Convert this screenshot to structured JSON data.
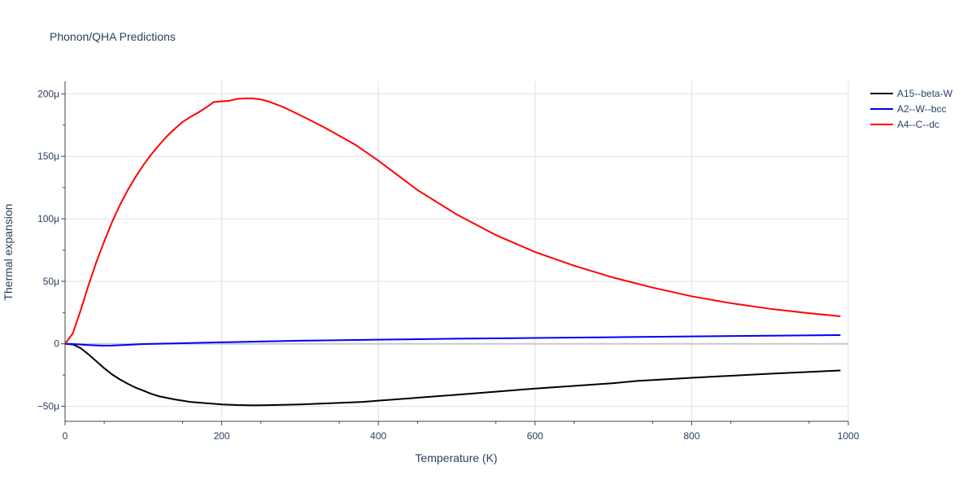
{
  "chart_data": {
    "type": "line",
    "title": "Phonon/QHA Predictions",
    "xlabel": "Temperature (K)",
    "ylabel": "Thermal expansion",
    "xlim": [
      0,
      1000
    ],
    "ylim": [
      -6.2e-05,
      0.00021
    ],
    "x_ticks": [
      0,
      200,
      400,
      600,
      800,
      1000
    ],
    "x_tick_labels": [
      "0",
      "200",
      "400",
      "600",
      "800",
      "1000"
    ],
    "y_ticks": [
      -5e-05,
      0,
      5e-05,
      0.0001,
      0.00015,
      0.0002
    ],
    "y_tick_labels": [
      "−50μ",
      "0",
      "50μ",
      "100μ",
      "150μ",
      "200μ"
    ],
    "grid": true,
    "legend_position": "top-right, outside plot",
    "series": [
      {
        "name": "A15--beta-W",
        "color": "#000000",
        "x": [
          0,
          10,
          20,
          30,
          40,
          50,
          60,
          70,
          80,
          90,
          100,
          110,
          120,
          140,
          150,
          160,
          180,
          200,
          220,
          240,
          260,
          300,
          340,
          380,
          400,
          500,
          600,
          700,
          730,
          800,
          900,
          990
        ],
        "y": [
          0,
          -5e-07,
          -3.5e-06,
          -8.5e-06,
          -1.4e-05,
          -1.95e-05,
          -2.45e-05,
          -2.85e-05,
          -3.2e-05,
          -3.5e-05,
          -3.75e-05,
          -4e-05,
          -4.2e-05,
          -4.45e-05,
          -4.55e-05,
          -4.65e-05,
          -4.75e-05,
          -4.85e-05,
          -4.9e-05,
          -4.92e-05,
          -4.91e-05,
          -4.85e-05,
          -4.75e-05,
          -4.65e-05,
          -4.55e-05,
          -4.08e-05,
          -3.58e-05,
          -3.15e-05,
          -2.97e-05,
          -2.72e-05,
          -2.39e-05,
          -2.13e-05
        ]
      },
      {
        "name": "A2--W--bcc",
        "color": "#0000ff",
        "x": [
          0,
          10,
          20,
          30,
          40,
          50,
          60,
          80,
          100,
          150,
          200,
          300,
          400,
          500,
          600,
          700,
          800,
          900,
          990
        ],
        "y": [
          0,
          -2e-07,
          -6e-07,
          -1e-06,
          -1.3e-06,
          -1.5e-06,
          -1.4e-06,
          -8e-07,
          -2e-07,
          5e-07,
          1.2e-06,
          2.5e-06,
          3.3e-06,
          4.1e-06,
          4.7e-06,
          5.3e-06,
          5.9e-06,
          6.5e-06,
          7e-06
        ]
      },
      {
        "name": "A4--C--dc",
        "color": "#ff0000",
        "x": [
          0,
          10,
          20,
          30,
          40,
          50,
          60,
          70,
          80,
          90,
          100,
          110,
          120,
          130,
          140,
          150,
          160,
          170,
          180,
          190,
          200,
          210,
          220,
          230,
          240,
          250,
          260,
          270,
          280,
          300,
          330,
          370,
          400,
          450,
          500,
          550,
          600,
          650,
          700,
          750,
          800,
          850,
          900,
          950,
          990
        ],
        "y": [
          0,
          8.5e-06,
          2.7e-05,
          4.7e-05,
          6.55e-05,
          8.2e-05,
          9.75e-05,
          0.000111,
          0.000123,
          0.0001335,
          0.000143,
          0.0001515,
          0.000159,
          0.000166,
          0.000172,
          0.0001775,
          0.0001815,
          0.000185,
          0.000189,
          0.0001935,
          0.000194,
          0.0001945,
          0.000196,
          0.0001963,
          0.0001963,
          0.0001955,
          0.0001938,
          0.0001915,
          0.000189,
          0.000183,
          0.0001735,
          0.0001595,
          0.0001465,
          0.000123,
          0.0001035,
          8.7e-05,
          7.35e-05,
          6.25e-05,
          5.3e-05,
          4.5e-05,
          3.8e-05,
          3.25e-05,
          2.8e-05,
          2.45e-05,
          2.2e-05
        ]
      }
    ]
  }
}
